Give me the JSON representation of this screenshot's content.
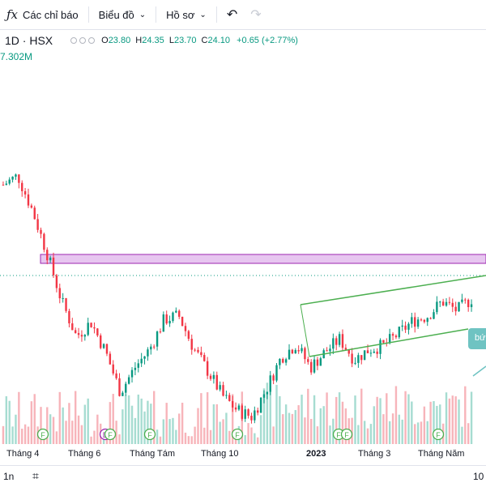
{
  "toolbar": {
    "indicators_label": "Các chỉ báo",
    "chart_label": "Biểu đồ",
    "profile_label": "Hồ sơ"
  },
  "legend": {
    "symbol": "1D · HSX",
    "open_label": "O",
    "open": "23.80",
    "high_label": "H",
    "high": "24.35",
    "low_label": "L",
    "low": "23.70",
    "close_label": "C",
    "close": "24.10",
    "change": "+0.65 (+2.77%)"
  },
  "volume_readout": "7.302M",
  "drawing_tag": "bứ",
  "x_axis": [
    "Tháng 4",
    "Tháng 6",
    "Tháng Tám",
    "Tháng 10",
    "2023",
    "Tháng 3",
    "Tháng Năm"
  ],
  "markers": [
    "F",
    "D",
    "F",
    "F",
    "F",
    "F",
    "F",
    "F"
  ],
  "bottom": {
    "timeframe": "1n",
    "zoom_label": "10"
  },
  "colors": {
    "up": "#089981",
    "down": "#f23645",
    "zone": "#e7c6f0",
    "zone_border": "#9c27b0",
    "trendline": "#4caf50"
  },
  "chart_data": {
    "type": "candlestick",
    "price_path": [
      22.5,
      23.2,
      20.5,
      17.2,
      13.5,
      10.8,
      11.9,
      9.6,
      6.5,
      8.4,
      9.8,
      12.1,
      12.4,
      9.9,
      8.1,
      6.2,
      5.1,
      4.6,
      6.8,
      9.2,
      10.2,
      8.4,
      9.6,
      10.6,
      9.0,
      9.8,
      10.1,
      11.0,
      12.0,
      12.4,
      13.5,
      12.8,
      13.7
    ]
  }
}
